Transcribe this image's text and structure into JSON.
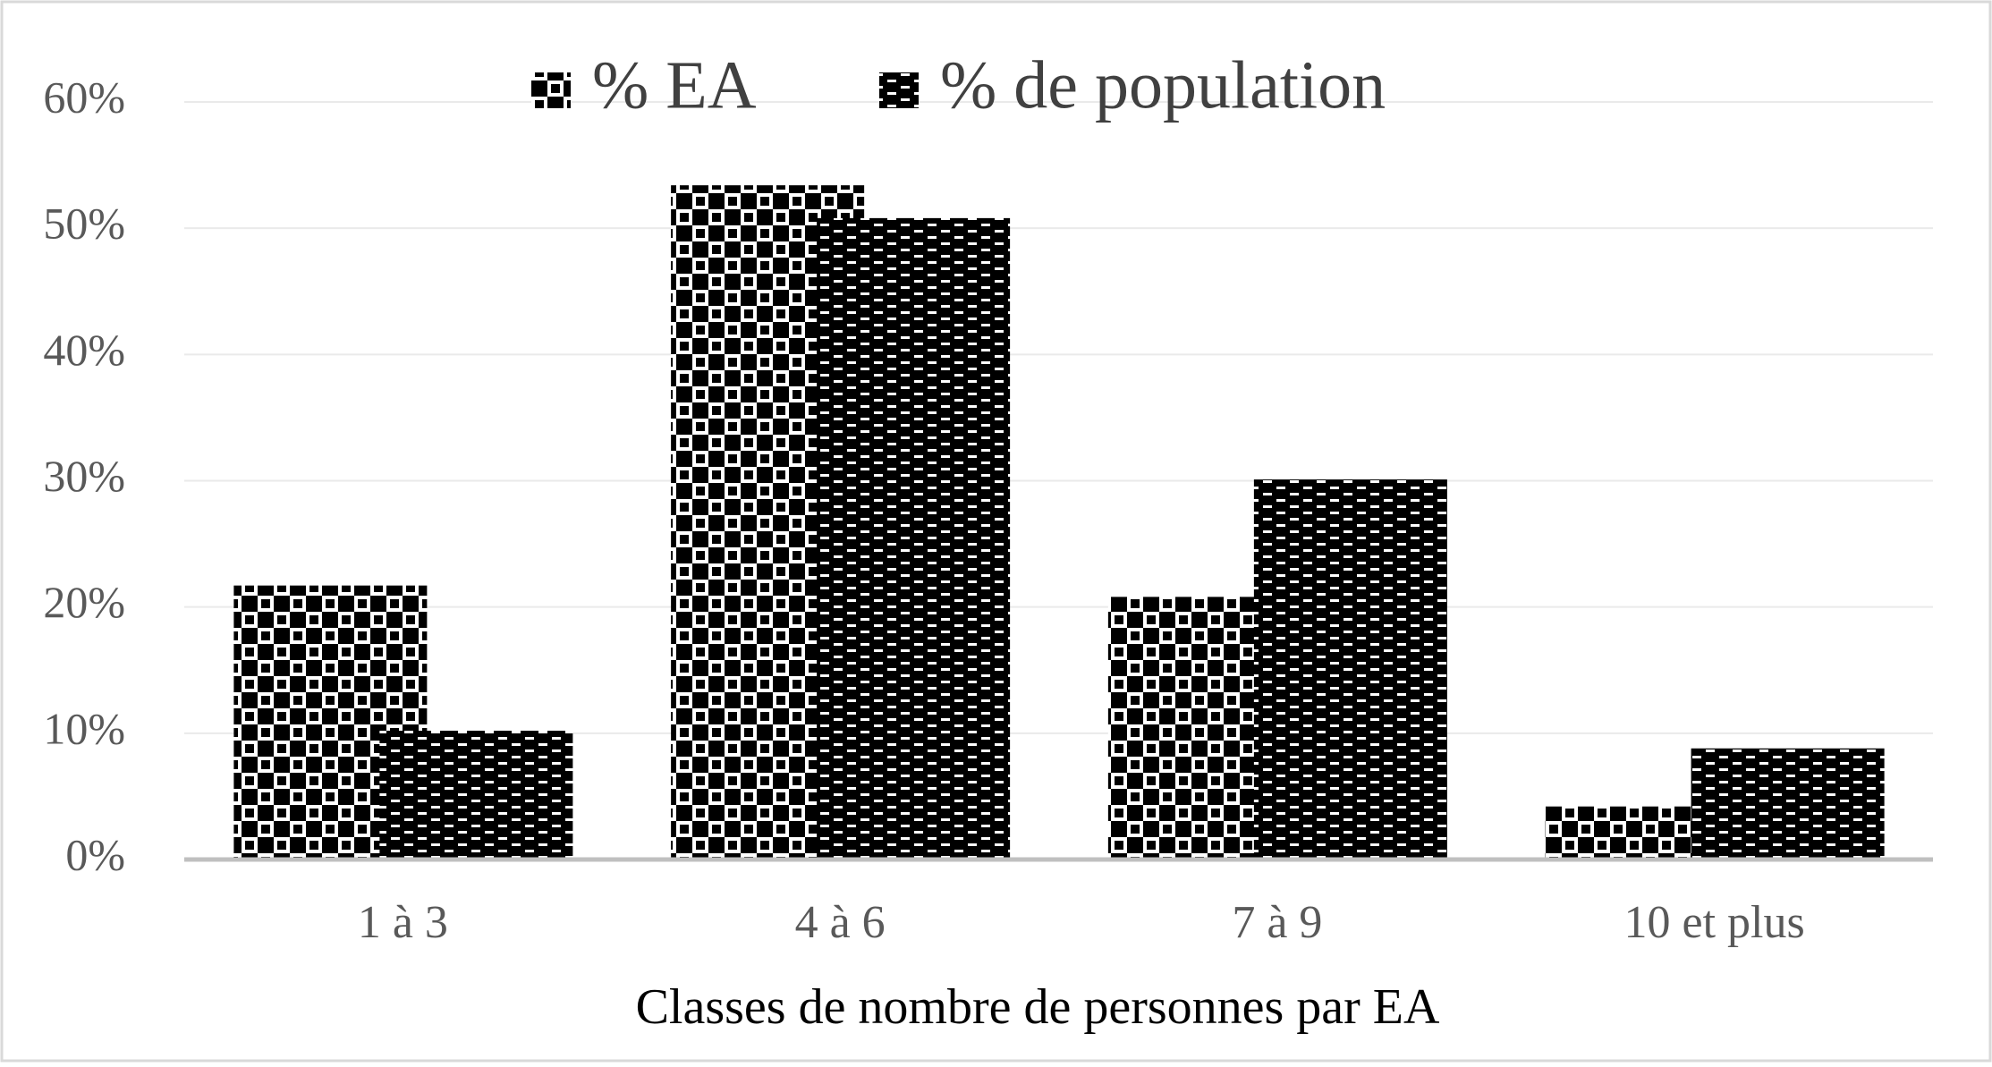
{
  "chart_data": {
    "type": "bar",
    "x_label": "Classes de nombre de personnes par EA",
    "categories": [
      "1 à 3",
      "4 à 6",
      "7 à 9",
      "10 et plus"
    ],
    "series": [
      {
        "name": "% EA",
        "color": "#d42a9c",
        "values": [
          21.7,
          53.4,
          20.8,
          4.2
        ]
      },
      {
        "name": "% de population",
        "color": "#8fd14f",
        "values": [
          10.2,
          50.8,
          30.1,
          8.8
        ]
      }
    ],
    "ylim": [
      0,
      60
    ],
    "yticks": [
      {
        "value": 0,
        "label": "0%"
      },
      {
        "value": 10,
        "label": "10%"
      },
      {
        "value": 20,
        "label": "20%"
      },
      {
        "value": 30,
        "label": "30%"
      },
      {
        "value": 40,
        "label": "40%"
      },
      {
        "value": 50,
        "label": "50%"
      },
      {
        "value": 60,
        "label": "60%"
      }
    ],
    "grid": true,
    "legend": "top"
  }
}
